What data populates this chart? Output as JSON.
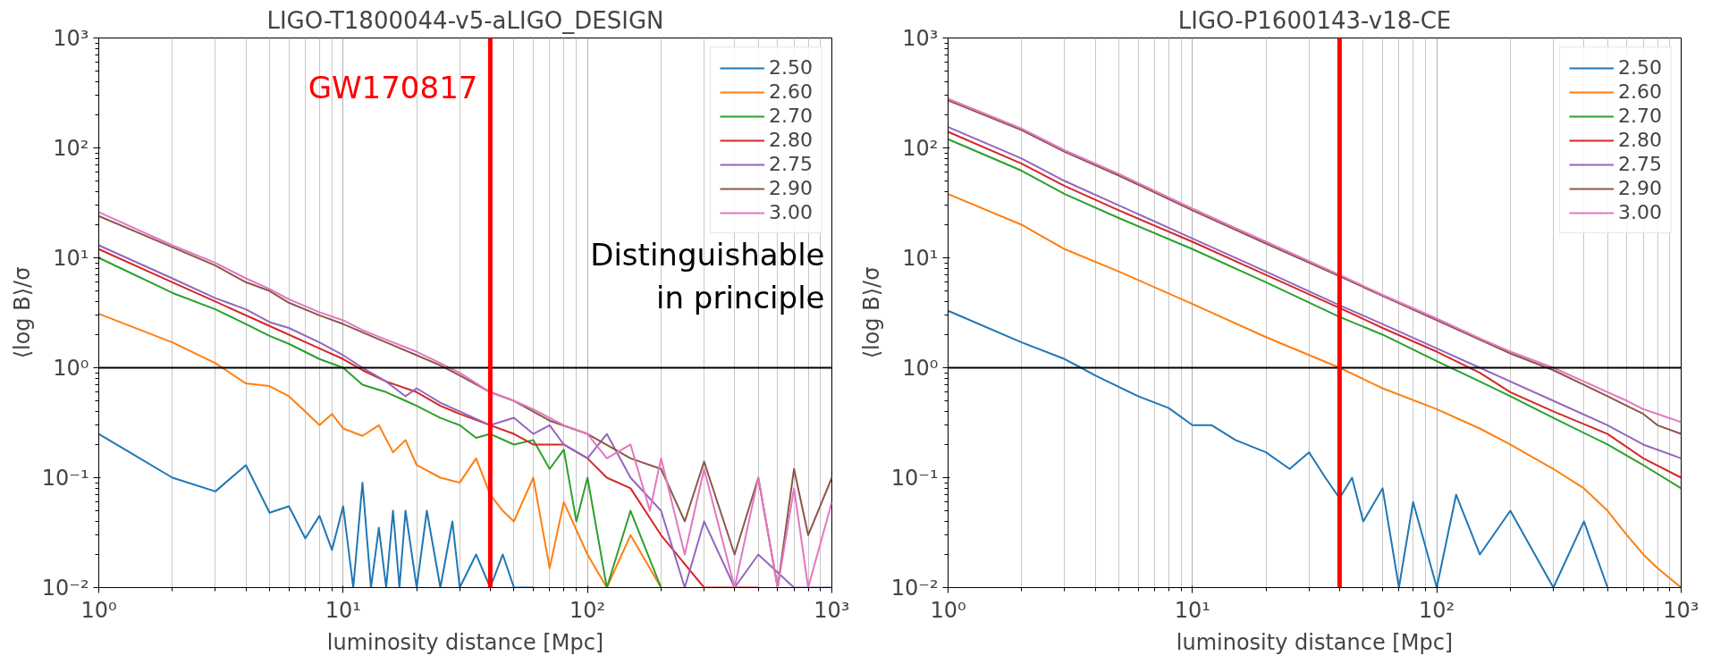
{
  "chart_data": [
    {
      "type": "line",
      "title": "LIGO-T1800044-v5-aLIGO_DESIGN",
      "xlabel": "luminosity distance [Mpc]",
      "ylabel": "⟨log B⟩/σ",
      "log": "xy",
      "grid": "x",
      "legend": "top right",
      "xlim": [
        1,
        1000
      ],
      "ylim": [
        0.01,
        1000
      ],
      "xticks": [
        {
          "value": 1,
          "label": "10⁰"
        },
        {
          "value": 10,
          "label": "10¹"
        },
        {
          "value": 100,
          "label": "10²"
        },
        {
          "value": 1000,
          "label": "10³"
        }
      ],
      "yticks": [
        {
          "value": 0.01,
          "label": "10⁻²"
        },
        {
          "value": 0.1,
          "label": "10⁻¹"
        },
        {
          "value": 1,
          "label": "10⁰"
        },
        {
          "value": 10,
          "label": "10¹"
        },
        {
          "value": 100,
          "label": "10²"
        },
        {
          "value": 1000,
          "label": "10³"
        }
      ],
      "ref_lines": [
        {
          "axis": "y",
          "value": 1,
          "color": "#000000"
        },
        {
          "axis": "x",
          "value": 40,
          "color": "#ff0000",
          "label": "GW170817"
        }
      ],
      "annotations": [
        "Distinguishable in principle"
      ],
      "series": [
        {
          "name": "2.50",
          "color": "#1f77b4",
          "x": [
            1,
            2,
            3,
            4,
            5,
            6,
            7,
            8,
            9,
            10,
            11,
            12,
            13,
            14,
            15,
            16,
            17,
            18,
            20,
            22,
            25,
            28,
            30,
            35,
            40,
            45,
            50,
            60
          ],
          "values": [
            0.25,
            0.1,
            0.075,
            0.13,
            0.048,
            0.055,
            0.028,
            0.045,
            0.022,
            0.055,
            0.01,
            0.09,
            0.01,
            0.035,
            0.01,
            0.05,
            0.01,
            0.05,
            0.01,
            0.05,
            0.01,
            0.04,
            0.01,
            0.02,
            0.01,
            0.02,
            0.01,
            0.01
          ]
        },
        {
          "name": "2.60",
          "color": "#ff7f0e",
          "x": [
            1,
            2,
            3,
            4,
            5,
            6,
            7,
            8,
            9,
            10,
            12,
            14,
            16,
            18,
            20,
            25,
            30,
            35,
            40,
            45,
            50,
            60,
            70,
            80,
            100,
            120,
            150,
            200
          ],
          "values": [
            3.1,
            1.7,
            1.1,
            0.72,
            0.68,
            0.55,
            0.4,
            0.3,
            0.38,
            0.28,
            0.24,
            0.3,
            0.17,
            0.22,
            0.13,
            0.1,
            0.09,
            0.15,
            0.07,
            0.05,
            0.04,
            0.1,
            0.015,
            0.06,
            0.02,
            0.01,
            0.03,
            0.01
          ]
        },
        {
          "name": "2.70",
          "color": "#2ca02c",
          "x": [
            1,
            2,
            3,
            4,
            5,
            6,
            8,
            10,
            12,
            15,
            18,
            20,
            25,
            30,
            35,
            40,
            50,
            60,
            70,
            80,
            90,
            100,
            120,
            150,
            200
          ],
          "values": [
            10,
            4.8,
            3.4,
            2.5,
            1.95,
            1.65,
            1.2,
            1.0,
            0.7,
            0.6,
            0.5,
            0.45,
            0.35,
            0.3,
            0.23,
            0.25,
            0.2,
            0.22,
            0.12,
            0.18,
            0.04,
            0.1,
            0.01,
            0.05,
            0.01
          ]
        },
        {
          "name": "2.80",
          "color": "#d62728",
          "x": [
            1,
            2,
            3,
            5,
            8,
            10,
            12,
            15,
            20,
            25,
            30,
            40,
            50,
            60,
            80,
            100,
            120,
            150,
            200,
            300,
            500
          ],
          "values": [
            12,
            6,
            4,
            2.4,
            1.5,
            1.2,
            0.95,
            0.75,
            0.6,
            0.45,
            0.38,
            0.3,
            0.25,
            0.2,
            0.2,
            0.15,
            0.1,
            0.08,
            0.03,
            0.01,
            0.01
          ]
        },
        {
          "name": "2.75",
          "color": "#9467bd",
          "x": [
            1,
            2,
            3,
            4,
            5,
            6,
            8,
            10,
            12,
            15,
            18,
            20,
            25,
            30,
            40,
            50,
            60,
            70,
            80,
            100,
            120,
            150,
            200,
            250,
            300,
            400,
            500,
            700,
            1000
          ],
          "values": [
            13,
            6.5,
            4.3,
            3.4,
            2.6,
            2.3,
            1.7,
            1.3,
            1.0,
            0.75,
            0.55,
            0.65,
            0.48,
            0.4,
            0.3,
            0.35,
            0.25,
            0.3,
            0.2,
            0.15,
            0.25,
            0.1,
            0.05,
            0.01,
            0.04,
            0.01,
            0.02,
            0.01,
            0.01
          ]
        },
        {
          "name": "2.90",
          "color": "#8c564b",
          "x": [
            1,
            2,
            3,
            4,
            5,
            6,
            8,
            10,
            12,
            15,
            20,
            25,
            30,
            40,
            50,
            70,
            100,
            150,
            200,
            250,
            300,
            400,
            500,
            600,
            700,
            800,
            1000
          ],
          "values": [
            24,
            12.5,
            8.5,
            6,
            5,
            3.9,
            3,
            2.5,
            2.1,
            1.7,
            1.3,
            1.05,
            0.85,
            0.6,
            0.5,
            0.33,
            0.25,
            0.15,
            0.12,
            0.04,
            0.14,
            0.02,
            0.1,
            0.01,
            0.12,
            0.03,
            0.1
          ]
        },
        {
          "name": "3.00",
          "color": "#e377c2",
          "x": [
            1,
            2,
            3,
            4,
            5,
            6,
            8,
            10,
            12,
            15,
            20,
            25,
            30,
            40,
            50,
            60,
            70,
            80,
            100,
            120,
            150,
            180,
            200,
            250,
            300,
            400,
            500,
            600,
            700,
            800,
            1000
          ],
          "values": [
            26,
            13,
            9,
            6.5,
            5.2,
            4.2,
            3.2,
            2.7,
            2.2,
            1.8,
            1.4,
            1.1,
            0.9,
            0.6,
            0.5,
            0.42,
            0.35,
            0.3,
            0.25,
            0.15,
            0.2,
            0.05,
            0.15,
            0.02,
            0.12,
            0.01,
            0.1,
            0.01,
            0.08,
            0.01,
            0.06
          ]
        }
      ]
    },
    {
      "type": "line",
      "title": "LIGO-P1600143-v18-CE",
      "xlabel": "luminosity distance [Mpc]",
      "ylabel": "⟨log B⟩/σ",
      "log": "xy",
      "grid": "x",
      "legend": "top right",
      "xlim": [
        1,
        1000
      ],
      "ylim": [
        0.01,
        1000
      ],
      "xticks": [
        {
          "value": 1,
          "label": "10⁰"
        },
        {
          "value": 10,
          "label": "10¹"
        },
        {
          "value": 100,
          "label": "10²"
        },
        {
          "value": 1000,
          "label": "10³"
        }
      ],
      "yticks": [
        {
          "value": 0.01,
          "label": "10⁻²"
        },
        {
          "value": 0.1,
          "label": "10⁻¹"
        },
        {
          "value": 1,
          "label": "10⁰"
        },
        {
          "value": 10,
          "label": "10¹"
        },
        {
          "value": 100,
          "label": "10²"
        },
        {
          "value": 1000,
          "label": "10³"
        }
      ],
      "ref_lines": [
        {
          "axis": "y",
          "value": 1,
          "color": "#000000"
        },
        {
          "axis": "x",
          "value": 40,
          "color": "#ff0000"
        }
      ],
      "series": [
        {
          "name": "2.50",
          "color": "#1f77b4",
          "x": [
            1,
            2,
            3,
            3.5,
            4,
            6,
            8,
            10,
            12,
            15,
            20,
            25,
            30,
            35,
            40,
            45,
            50,
            60,
            70,
            80,
            100,
            120,
            150,
            200,
            300,
            400,
            500
          ],
          "values": [
            3.3,
            1.7,
            1.2,
            1.0,
            0.85,
            0.55,
            0.43,
            0.3,
            0.3,
            0.22,
            0.17,
            0.12,
            0.17,
            0.1,
            0.065,
            0.1,
            0.04,
            0.08,
            0.01,
            0.06,
            0.01,
            0.07,
            0.02,
            0.05,
            0.01,
            0.04,
            0.01
          ]
        },
        {
          "name": "2.60",
          "color": "#ff7f0e",
          "x": [
            1,
            2,
            3,
            5,
            10,
            20,
            40,
            60,
            100,
            150,
            200,
            300,
            400,
            500,
            600,
            700,
            800,
            1000
          ],
          "values": [
            38,
            20,
            12,
            7.5,
            3.8,
            1.9,
            1.0,
            0.65,
            0.42,
            0.28,
            0.2,
            0.12,
            0.08,
            0.05,
            0.03,
            0.02,
            0.015,
            0.01
          ]
        },
        {
          "name": "2.70",
          "color": "#2ca02c",
          "x": [
            1,
            2,
            3,
            5,
            10,
            20,
            40,
            60,
            100,
            150,
            200,
            300,
            500,
            700,
            1000
          ],
          "values": [
            120,
            62,
            38,
            23,
            12,
            6,
            2.9,
            2.0,
            1.15,
            0.75,
            0.55,
            0.35,
            0.2,
            0.13,
            0.08
          ]
        },
        {
          "name": "2.80",
          "color": "#d62728",
          "x": [
            1,
            2,
            3,
            5,
            10,
            20,
            40,
            60,
            100,
            150,
            200,
            300,
            500,
            700,
            1000
          ],
          "values": [
            140,
            72,
            45,
            27,
            14,
            7,
            3.5,
            2.3,
            1.4,
            0.9,
            0.6,
            0.4,
            0.25,
            0.15,
            0.1
          ]
        },
        {
          "name": "2.75",
          "color": "#9467bd",
          "x": [
            1,
            2,
            3,
            5,
            10,
            20,
            40,
            60,
            100,
            150,
            200,
            300,
            500,
            700,
            1000
          ],
          "values": [
            155,
            80,
            50,
            30,
            15,
            7.5,
            3.7,
            2.5,
            1.5,
            1.0,
            0.75,
            0.5,
            0.3,
            0.2,
            0.15
          ]
        },
        {
          "name": "2.90",
          "color": "#8c564b",
          "x": [
            1,
            2,
            3,
            5,
            10,
            20,
            40,
            60,
            100,
            150,
            200,
            300,
            400,
            500,
            600,
            700,
            800,
            1000
          ],
          "values": [
            270,
            145,
            92,
            56,
            27,
            13.5,
            6.8,
            4.5,
            2.7,
            1.8,
            1.35,
            0.95,
            0.7,
            0.55,
            0.45,
            0.38,
            0.3,
            0.25
          ]
        },
        {
          "name": "3.00",
          "color": "#e377c2",
          "x": [
            1,
            2,
            3,
            5,
            10,
            20,
            40,
            60,
            100,
            150,
            200,
            300,
            400,
            500,
            600,
            700,
            800,
            1000
          ],
          "values": [
            280,
            150,
            95,
            58,
            28,
            14,
            7,
            4.6,
            2.8,
            1.85,
            1.4,
            1.0,
            0.75,
            0.6,
            0.5,
            0.42,
            0.38,
            0.32
          ]
        }
      ]
    }
  ]
}
